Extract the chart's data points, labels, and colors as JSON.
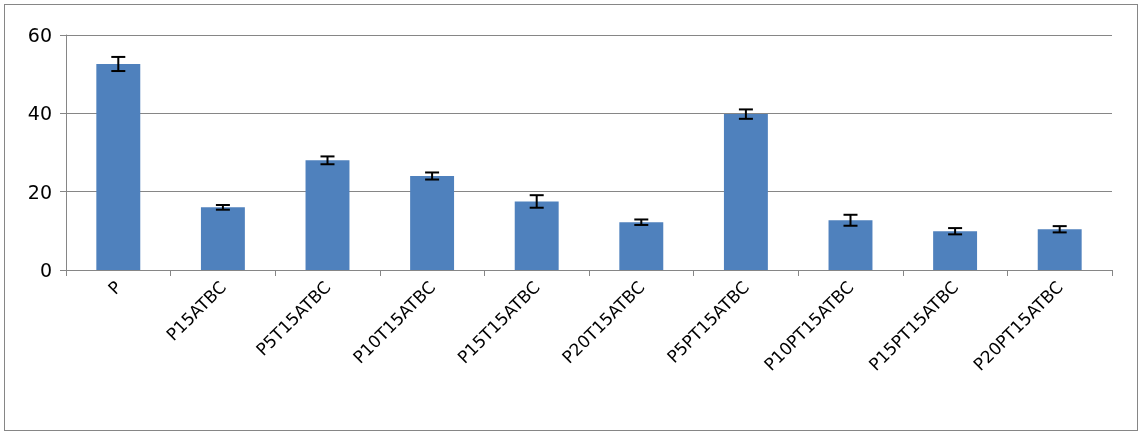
{
  "chart_data": {
    "type": "bar",
    "categories": [
      "P",
      "P15ATBC",
      "P5T15ATBC",
      "P10T15ATBC",
      "P15T15ATBC",
      "P20T15ATBC",
      "P5PT15ATBC",
      "P10PT15ATBC",
      "P15PT15ATBC",
      "P20PT15ATBC"
    ],
    "values": [
      52.6,
      16.0,
      28.0,
      24.0,
      17.5,
      12.2,
      39.8,
      12.7,
      9.9,
      10.4
    ],
    "errors": [
      1.8,
      0.6,
      1.0,
      0.9,
      1.6,
      0.7,
      1.2,
      1.4,
      0.8,
      0.8
    ],
    "color": "#4f81bd",
    "ylim": [
      0,
      60
    ],
    "yticks": [
      0,
      20,
      40,
      60
    ],
    "grid": "y"
  }
}
